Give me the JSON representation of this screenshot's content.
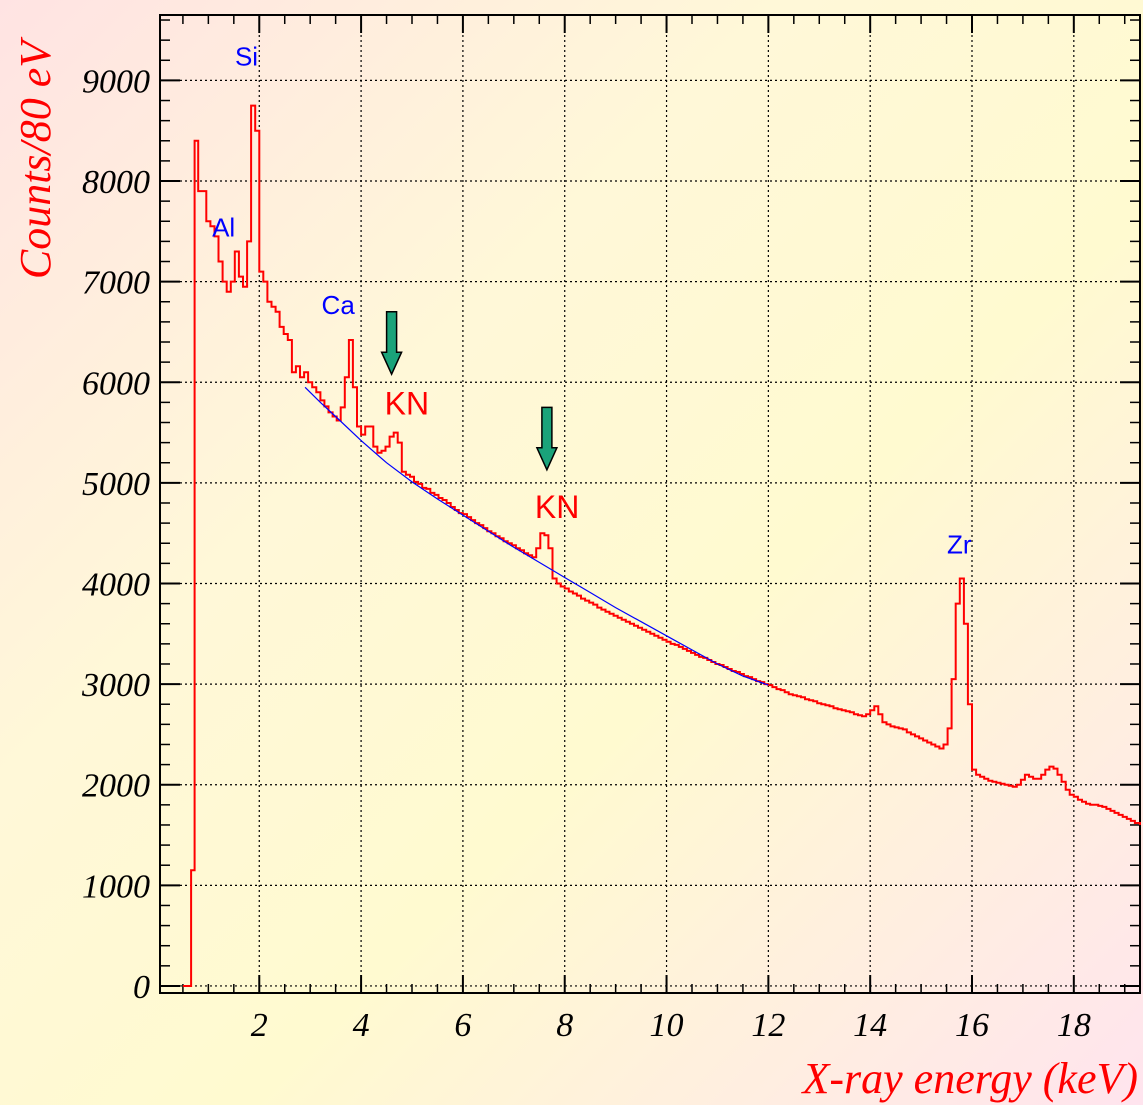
{
  "chart_data": {
    "type": "histogram",
    "xlabel": "X-ray energy (keV)",
    "ylabel": "Counts/80 eV",
    "xlim": [
      0.05,
      19.3
    ],
    "ylim": [
      -70,
      9650
    ],
    "xticks": [
      2,
      4,
      6,
      8,
      10,
      12,
      14,
      16,
      18
    ],
    "yticks": [
      0,
      1000,
      2000,
      3000,
      4000,
      5000,
      6000,
      7000,
      8000,
      9000
    ],
    "grid": true,
    "bin_width_keV": 0.08,
    "series": [
      {
        "color": "#ff0000",
        "points": [
          [
            0.5,
            0
          ],
          [
            0.65,
            0
          ],
          [
            0.66,
            1150
          ],
          [
            0.72,
            1150
          ],
          [
            0.73,
            8400
          ],
          [
            0.8,
            8400
          ],
          [
            0.8,
            7900
          ],
          [
            0.88,
            7900
          ],
          [
            0.96,
            7600
          ],
          [
            1.04,
            7550
          ],
          [
            1.12,
            7450
          ],
          [
            1.2,
            7200
          ],
          [
            1.28,
            7000
          ],
          [
            1.36,
            6900
          ],
          [
            1.44,
            7000
          ],
          [
            1.52,
            7300
          ],
          [
            1.6,
            7050
          ],
          [
            1.68,
            6950
          ],
          [
            1.76,
            7400
          ],
          [
            1.84,
            8750
          ],
          [
            1.92,
            8500
          ],
          [
            2.0,
            7100
          ],
          [
            2.08,
            7000
          ],
          [
            2.16,
            6800
          ],
          [
            2.24,
            6750
          ],
          [
            2.32,
            6700
          ],
          [
            2.4,
            6550
          ],
          [
            2.48,
            6480
          ],
          [
            2.56,
            6420
          ],
          [
            2.64,
            6100
          ],
          [
            2.72,
            6160
          ],
          [
            2.8,
            6050
          ],
          [
            2.88,
            6100
          ],
          [
            2.96,
            6000
          ],
          [
            3.04,
            5950
          ],
          [
            3.12,
            5900
          ],
          [
            3.2,
            5820
          ],
          [
            3.28,
            5760
          ],
          [
            3.36,
            5700
          ],
          [
            3.44,
            5660
          ],
          [
            3.52,
            5620
          ],
          [
            3.6,
            5750
          ],
          [
            3.68,
            6050
          ],
          [
            3.76,
            6420
          ],
          [
            3.84,
            5950
          ],
          [
            3.92,
            5560
          ],
          [
            4.0,
            5480
          ],
          [
            4.08,
            5560
          ],
          [
            4.16,
            5560
          ],
          [
            4.24,
            5360
          ],
          [
            4.32,
            5300
          ],
          [
            4.4,
            5320
          ],
          [
            4.48,
            5360
          ],
          [
            4.56,
            5460
          ],
          [
            4.64,
            5500
          ],
          [
            4.72,
            5400
          ],
          [
            4.8,
            5110
          ],
          [
            4.88,
            5080
          ],
          [
            4.96,
            5060
          ],
          [
            5.04,
            5010
          ],
          [
            5.12,
            4990
          ],
          [
            5.2,
            4950
          ],
          [
            5.28,
            4940
          ],
          [
            5.36,
            4900
          ],
          [
            5.44,
            4880
          ],
          [
            5.52,
            4850
          ],
          [
            5.6,
            4830
          ],
          [
            5.68,
            4800
          ],
          [
            5.76,
            4760
          ],
          [
            5.84,
            4730
          ],
          [
            5.92,
            4700
          ],
          [
            6.0,
            4690
          ],
          [
            6.08,
            4660
          ],
          [
            6.16,
            4630
          ],
          [
            6.24,
            4600
          ],
          [
            6.32,
            4580
          ],
          [
            6.4,
            4550
          ],
          [
            6.48,
            4520
          ],
          [
            6.56,
            4500
          ],
          [
            6.64,
            4470
          ],
          [
            6.72,
            4450
          ],
          [
            6.8,
            4420
          ],
          [
            6.88,
            4400
          ],
          [
            6.96,
            4380
          ],
          [
            7.04,
            4350
          ],
          [
            7.12,
            4330
          ],
          [
            7.2,
            4300
          ],
          [
            7.28,
            4280
          ],
          [
            7.36,
            4260
          ],
          [
            7.44,
            4350
          ],
          [
            7.52,
            4500
          ],
          [
            7.6,
            4480
          ],
          [
            7.68,
            4350
          ],
          [
            7.76,
            4050
          ],
          [
            7.84,
            4000
          ],
          [
            7.92,
            3970
          ],
          [
            8.0,
            3950
          ],
          [
            8.08,
            3920
          ],
          [
            8.16,
            3900
          ],
          [
            8.24,
            3880
          ],
          [
            8.32,
            3850
          ],
          [
            8.4,
            3830
          ],
          [
            8.48,
            3810
          ],
          [
            8.56,
            3790
          ],
          [
            8.64,
            3760
          ],
          [
            8.72,
            3740
          ],
          [
            8.8,
            3720
          ],
          [
            8.88,
            3700
          ],
          [
            8.96,
            3680
          ],
          [
            9.04,
            3660
          ],
          [
            9.12,
            3640
          ],
          [
            9.2,
            3620
          ],
          [
            9.28,
            3600
          ],
          [
            9.36,
            3580
          ],
          [
            9.44,
            3560
          ],
          [
            9.52,
            3540
          ],
          [
            9.6,
            3520
          ],
          [
            9.68,
            3500
          ],
          [
            9.76,
            3480
          ],
          [
            9.84,
            3460
          ],
          [
            9.92,
            3440
          ],
          [
            10.0,
            3420
          ],
          [
            10.08,
            3400
          ],
          [
            10.16,
            3390
          ],
          [
            10.24,
            3370
          ],
          [
            10.32,
            3350
          ],
          [
            10.4,
            3330
          ],
          [
            10.48,
            3310
          ],
          [
            10.56,
            3290
          ],
          [
            10.64,
            3270
          ],
          [
            10.72,
            3260
          ],
          [
            10.8,
            3240
          ],
          [
            10.88,
            3220
          ],
          [
            10.96,
            3200
          ],
          [
            11.04,
            3190
          ],
          [
            11.12,
            3170
          ],
          [
            11.2,
            3150
          ],
          [
            11.28,
            3130
          ],
          [
            11.36,
            3120
          ],
          [
            11.44,
            3100
          ],
          [
            11.52,
            3080
          ],
          [
            11.6,
            3070
          ],
          [
            11.68,
            3050
          ],
          [
            11.76,
            3030
          ],
          [
            11.84,
            3020
          ],
          [
            11.92,
            3000
          ],
          [
            12.0,
            2990
          ],
          [
            12.08,
            2970
          ],
          [
            12.16,
            2950
          ],
          [
            12.24,
            2940
          ],
          [
            12.32,
            2920
          ],
          [
            12.4,
            2900
          ],
          [
            12.48,
            2890
          ],
          [
            12.56,
            2880
          ],
          [
            12.64,
            2870
          ],
          [
            12.72,
            2850
          ],
          [
            12.8,
            2840
          ],
          [
            12.88,
            2830
          ],
          [
            12.96,
            2810
          ],
          [
            13.04,
            2800
          ],
          [
            13.12,
            2790
          ],
          [
            13.2,
            2780
          ],
          [
            13.28,
            2760
          ],
          [
            13.36,
            2750
          ],
          [
            13.44,
            2740
          ],
          [
            13.52,
            2730
          ],
          [
            13.6,
            2720
          ],
          [
            13.68,
            2700
          ],
          [
            13.76,
            2690
          ],
          [
            13.84,
            2680
          ],
          [
            13.92,
            2700
          ],
          [
            14.0,
            2740
          ],
          [
            14.08,
            2780
          ],
          [
            14.16,
            2700
          ],
          [
            14.24,
            2620
          ],
          [
            14.32,
            2600
          ],
          [
            14.4,
            2580
          ],
          [
            14.48,
            2570
          ],
          [
            14.56,
            2560
          ],
          [
            14.64,
            2550
          ],
          [
            14.72,
            2520
          ],
          [
            14.8,
            2500
          ],
          [
            14.88,
            2480
          ],
          [
            14.96,
            2460
          ],
          [
            15.04,
            2440
          ],
          [
            15.12,
            2420
          ],
          [
            15.2,
            2400
          ],
          [
            15.28,
            2380
          ],
          [
            15.36,
            2360
          ],
          [
            15.44,
            2400
          ],
          [
            15.52,
            2560
          ],
          [
            15.6,
            3050
          ],
          [
            15.68,
            3800
          ],
          [
            15.76,
            4050
          ],
          [
            15.84,
            3600
          ],
          [
            15.92,
            2800
          ],
          [
            16.0,
            2150
          ],
          [
            16.08,
            2100
          ],
          [
            16.16,
            2080
          ],
          [
            16.24,
            2060
          ],
          [
            16.32,
            2040
          ],
          [
            16.4,
            2030
          ],
          [
            16.48,
            2020
          ],
          [
            16.56,
            2010
          ],
          [
            16.64,
            2000
          ],
          [
            16.72,
            1990
          ],
          [
            16.8,
            1980
          ],
          [
            16.88,
            2000
          ],
          [
            16.96,
            2050
          ],
          [
            17.04,
            2100
          ],
          [
            17.12,
            2080
          ],
          [
            17.2,
            2060
          ],
          [
            17.28,
            2060
          ],
          [
            17.36,
            2100
          ],
          [
            17.44,
            2150
          ],
          [
            17.52,
            2180
          ],
          [
            17.6,
            2160
          ],
          [
            17.68,
            2100
          ],
          [
            17.76,
            2030
          ],
          [
            17.84,
            1950
          ],
          [
            17.92,
            1900
          ],
          [
            18.0,
            1880
          ],
          [
            18.08,
            1850
          ],
          [
            18.16,
            1830
          ],
          [
            18.24,
            1810
          ],
          [
            18.32,
            1800
          ],
          [
            18.4,
            1800
          ],
          [
            18.48,
            1790
          ],
          [
            18.56,
            1780
          ],
          [
            18.64,
            1760
          ],
          [
            18.72,
            1740
          ],
          [
            18.8,
            1720
          ],
          [
            18.88,
            1700
          ],
          [
            18.96,
            1680
          ],
          [
            19.04,
            1660
          ],
          [
            19.12,
            1640
          ],
          [
            19.2,
            1620
          ],
          [
            19.3,
            1600
          ]
        ]
      },
      {
        "color": "#0000ff",
        "fit": true,
        "x_range": [
          2.9,
          12.0
        ],
        "points": [
          [
            2.9,
            5950
          ],
          [
            3.2,
            5800
          ],
          [
            3.5,
            5660
          ],
          [
            4.0,
            5420
          ],
          [
            4.5,
            5200
          ],
          [
            5.0,
            5010
          ],
          [
            5.5,
            4840
          ],
          [
            6.0,
            4680
          ],
          [
            6.5,
            4520
          ],
          [
            7.0,
            4360
          ],
          [
            7.5,
            4210
          ],
          [
            8.0,
            4060
          ],
          [
            8.5,
            3910
          ],
          [
            9.0,
            3760
          ],
          [
            9.5,
            3620
          ],
          [
            10.0,
            3480
          ],
          [
            10.5,
            3340
          ],
          [
            11.0,
            3200
          ],
          [
            11.5,
            3080
          ],
          [
            12.0,
            2990
          ]
        ]
      }
    ],
    "annotations": [
      {
        "text": "Si",
        "x": 1.75,
        "y": 9150,
        "color": "#0000ff"
      },
      {
        "text": "Al",
        "x": 1.3,
        "y": 7450,
        "color": "#0000ff"
      },
      {
        "text": "Ca",
        "x": 3.55,
        "y": 6680,
        "color": "#0000ff"
      },
      {
        "text": "KN",
        "x": 4.9,
        "y": 5680,
        "color": "#ff0000"
      },
      {
        "text": "KN",
        "x": 7.85,
        "y": 4650,
        "color": "#ff0000"
      },
      {
        "text": "Zr",
        "x": 15.75,
        "y": 4300,
        "color": "#0000ff"
      }
    ],
    "arrows": [
      {
        "x": 4.6,
        "y_top": 6700,
        "y_bottom": 6080,
        "color": "#1aa37a"
      },
      {
        "x": 7.65,
        "y_top": 5750,
        "y_bottom": 5130,
        "color": "#1aa37a"
      }
    ]
  }
}
